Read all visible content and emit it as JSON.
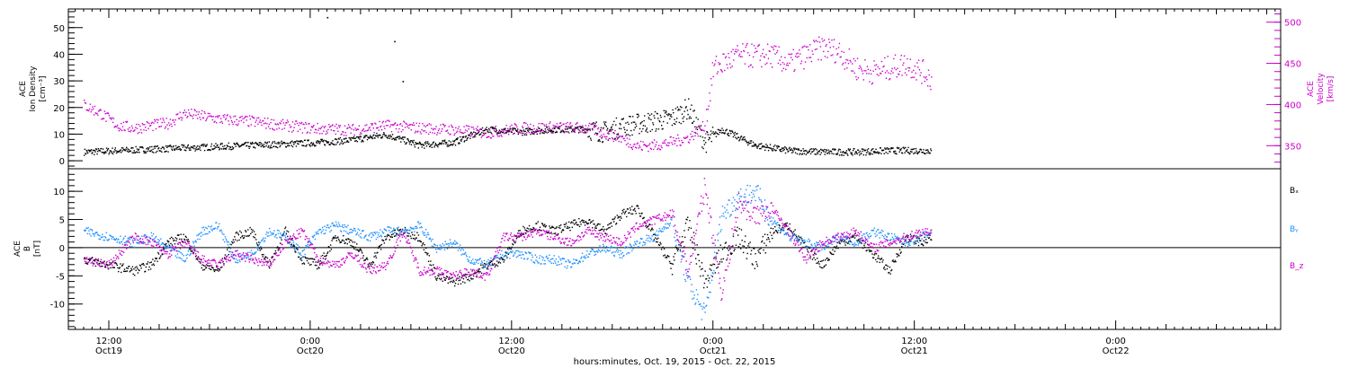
{
  "chart_data": [
    {
      "type": "scatter",
      "panel": "top",
      "left_axis_label": [
        "ACE",
        "Ion Density",
        "[cm⁻³]"
      ],
      "right_axis_label": [
        "ACE",
        "Velocity",
        "[km/s]"
      ],
      "left_ylim": [
        -3,
        57
      ],
      "right_ylim": [
        322,
        516
      ],
      "left_ticks": [
        0,
        10,
        20,
        30,
        40,
        50
      ],
      "right_ticks": [
        350,
        400,
        450,
        500
      ],
      "x_range_hours": [
        0,
        102
      ],
      "grid": false,
      "colors": {
        "density": "#000000",
        "velocity": "#cc00cc"
      },
      "series": [
        {
          "name": "Ion Density",
          "color": "#000000",
          "axis": "left",
          "x": [
            0,
            4,
            8,
            12,
            16,
            20,
            24,
            28,
            32,
            36,
            38,
            40,
            44,
            48,
            52,
            56,
            60,
            62,
            64,
            66,
            68,
            70,
            72,
            74,
            76,
            80,
            84,
            88,
            92,
            96,
            100,
            101
          ],
          "y": [
            3.5,
            4,
            4.5,
            5,
            5.5,
            6,
            6.5,
            7,
            8,
            10,
            8,
            6,
            7,
            12,
            11,
            12,
            12,
            11,
            13,
            14,
            15,
            16,
            20,
            7,
            12,
            6,
            4,
            3.5,
            3.5,
            4,
            4,
            4
          ],
          "outliers": {
            "x": [
              29,
              37,
              38
            ],
            "y": [
              54,
              45,
              30
            ]
          }
        },
        {
          "name": "Velocity",
          "color": "#cc00cc",
          "axis": "right",
          "x": [
            0,
            2,
            4,
            6,
            10,
            12,
            16,
            20,
            24,
            28,
            32,
            36,
            40,
            44,
            48,
            52,
            56,
            60,
            64,
            66,
            68,
            70,
            72,
            74,
            75,
            78,
            82,
            84,
            88,
            90,
            92,
            94,
            96,
            98,
            100,
            101
          ],
          "y": [
            400,
            390,
            375,
            372,
            378,
            390,
            383,
            380,
            375,
            371,
            370,
            375,
            372,
            370,
            366,
            372,
            373,
            372,
            360,
            350,
            351,
            355,
            360,
            375,
            445,
            460,
            460,
            450,
            470,
            465,
            445,
            440,
            445,
            450,
            440,
            432
          ]
        }
      ]
    },
    {
      "type": "scatter",
      "panel": "bottom",
      "left_axis_label": [
        "ACE",
        "B",
        "[nT]"
      ],
      "ylim": [
        -14.5,
        14
      ],
      "y_ticks": [
        -10,
        -5,
        0,
        5,
        10
      ],
      "zero_line": true,
      "x_range_hours": [
        0,
        102
      ],
      "grid": false,
      "legend": [
        "Bₓ",
        "Bᵧ",
        "B_z"
      ],
      "colors": {
        "bx": "#000000",
        "by": "#1e90ff",
        "bz": "#cc00cc"
      },
      "series": [
        {
          "name": "Bₓ",
          "color": "#000000",
          "x": [
            0,
            3,
            6,
            8,
            10,
            12,
            14,
            16,
            18,
            20,
            22,
            24,
            26,
            28,
            30,
            32,
            34,
            36,
            38,
            40,
            42,
            44,
            46,
            48,
            50,
            52,
            54,
            56,
            58,
            60,
            62,
            64,
            66,
            68,
            70,
            72,
            74,
            76,
            78,
            80,
            82,
            84,
            86,
            88,
            90,
            92,
            94,
            96,
            98,
            100,
            101
          ],
          "y": [
            -2,
            -3,
            -4,
            -3,
            1,
            2,
            -3,
            -4,
            2,
            3,
            -3,
            3,
            -2,
            -3,
            2,
            1,
            -3,
            2,
            3,
            2,
            -5,
            -6,
            -5,
            -3,
            -2,
            3,
            4,
            3,
            4,
            5,
            3,
            6,
            7,
            2,
            -3,
            4,
            -6,
            -1,
            2,
            -2,
            3,
            4,
            0,
            -3,
            1,
            2,
            -1,
            -4,
            2,
            1,
            2
          ]
        },
        {
          "name": "Bᵧ",
          "color": "#1e90ff",
          "x": [
            0,
            3,
            6,
            8,
            10,
            12,
            14,
            16,
            18,
            20,
            22,
            24,
            26,
            28,
            30,
            32,
            34,
            36,
            38,
            40,
            42,
            44,
            46,
            48,
            50,
            52,
            54,
            56,
            58,
            60,
            62,
            64,
            66,
            68,
            70,
            72,
            74,
            76,
            78,
            80,
            82,
            84,
            86,
            88,
            90,
            92,
            94,
            96,
            98,
            100,
            101
          ],
          "y": [
            3,
            2,
            1,
            2,
            0,
            -2,
            3,
            4,
            -2,
            -1,
            3,
            2,
            -1,
            3,
            4,
            3,
            2,
            3,
            3,
            4,
            0,
            1,
            -2,
            -3,
            -1,
            -1,
            -2,
            -2,
            -3,
            -1,
            0,
            -1,
            1,
            2,
            5,
            -6,
            -12,
            6,
            9,
            10,
            5,
            2,
            1,
            0,
            2,
            1,
            3,
            2,
            1,
            2,
            3
          ]
        },
        {
          "name": "B_z",
          "color": "#cc00cc",
          "x": [
            0,
            3,
            6,
            8,
            10,
            12,
            14,
            16,
            18,
            20,
            22,
            24,
            26,
            28,
            30,
            32,
            34,
            36,
            38,
            40,
            42,
            44,
            46,
            48,
            50,
            52,
            54,
            56,
            58,
            60,
            62,
            64,
            66,
            68,
            70,
            72,
            74,
            76,
            78,
            80,
            82,
            84,
            86,
            88,
            90,
            92,
            94,
            96,
            98,
            100,
            101
          ],
          "y": [
            -2,
            -3,
            2,
            1,
            -1,
            1,
            -2,
            -3,
            -1,
            -2,
            -3,
            1,
            3,
            -2,
            -3,
            -1,
            -4,
            -3,
            3,
            -4,
            -4,
            -5,
            -4,
            -5,
            2,
            2,
            3,
            2,
            1,
            3,
            2,
            1,
            4,
            5,
            6,
            -4,
            11,
            -8,
            8,
            6,
            7,
            3,
            -2,
            1,
            2,
            3,
            0,
            1,
            2,
            3,
            3
          ]
        }
      ]
    }
  ],
  "x_axis": {
    "title": "hours:minutes, Oct. 19, 2015 - Oct. 22, 2015",
    "major_ticks": [
      {
        "hour": 3,
        "time": "12:00",
        "date": "Oct19"
      },
      {
        "hour": 27,
        "time": "0:00",
        "date": "Oct20"
      },
      {
        "hour": 51,
        "time": "12:00",
        "date": "Oct20"
      },
      {
        "hour": 75,
        "time": "0:00",
        "date": "Oct21"
      },
      {
        "hour": 99,
        "time": "12:00",
        "date": "Oct21"
      },
      {
        "hour": 123,
        "time": "0:00",
        "date": "Oct22"
      }
    ]
  }
}
